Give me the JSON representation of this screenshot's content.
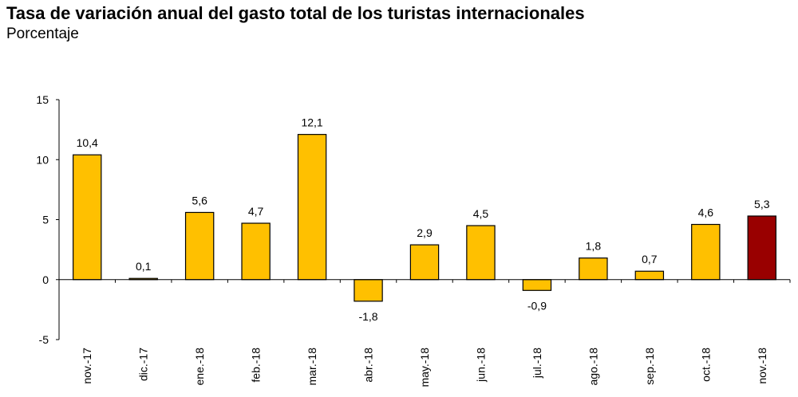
{
  "chart_data": {
    "type": "bar",
    "title": "Tasa de variación anual del gasto total de los turistas internacionales",
    "subtitle": "Porcentaje",
    "categories": [
      "nov.-17",
      "dic.-17",
      "ene.-18",
      "feb.-18",
      "mar.-18",
      "abr.-18",
      "may.-18",
      "jun.-18",
      "jul.-18",
      "ago.-18",
      "sep.-18",
      "oct.-18",
      "nov.-18"
    ],
    "values": [
      10.4,
      0.1,
      5.6,
      4.7,
      12.1,
      -1.8,
      2.9,
      4.5,
      -0.9,
      1.8,
      0.7,
      4.6,
      5.3
    ],
    "data_labels": [
      "10,4",
      "0,1",
      "5,6",
      "4,7",
      "12,1",
      "-1,8",
      "2,9",
      "4,5",
      "-0,9",
      "1,8",
      "0,7",
      "4,6",
      "5,3"
    ],
    "ylim": [
      -5,
      15
    ],
    "yticks": [
      -5,
      0,
      5,
      10,
      15
    ],
    "ytick_labels": [
      "-5",
      "0",
      "5",
      "10",
      "15"
    ],
    "grid": false,
    "legend": "none",
    "colors": {
      "default": "#FFC000",
      "highlight": "#990000",
      "outline": "#000000"
    },
    "highlight_index": 12
  }
}
